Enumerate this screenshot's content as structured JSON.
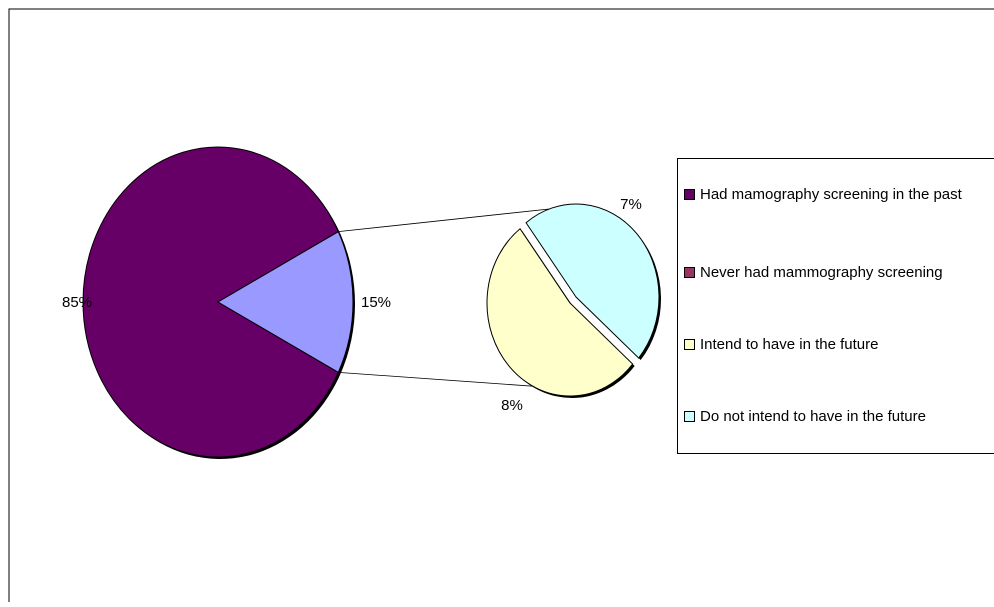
{
  "chart_data": {
    "type": "pie",
    "subtype": "pie-of-pie",
    "main_pie": {
      "slices": [
        {
          "label": "Had mamography screening in the past",
          "value": 85,
          "data_label": "85%",
          "color": "#660066"
        },
        {
          "label": "Never had mammography screening",
          "value": 15,
          "data_label": "15%",
          "color": "#9999ff"
        }
      ]
    },
    "secondary_pie": {
      "breakdown_of": "Never had mammography screening",
      "slices": [
        {
          "label": "Intend to have in the future",
          "value": 8,
          "data_label": "8%",
          "color": "#ffffcc"
        },
        {
          "label": "Do not intend to have in the future",
          "value": 7,
          "data_label": "7%",
          "color": "#ccffff"
        }
      ]
    },
    "legend": {
      "placement": "right",
      "entries": [
        {
          "label": "Had mamography screening in the past",
          "color": "#660066"
        },
        {
          "label": "Never had mammography screening",
          "color": "#993366"
        },
        {
          "label": "Intend to have in the future",
          "color": "#ffffcc"
        },
        {
          "label": "Do not intend to have in the future",
          "color": "#ccffff"
        }
      ]
    }
  }
}
